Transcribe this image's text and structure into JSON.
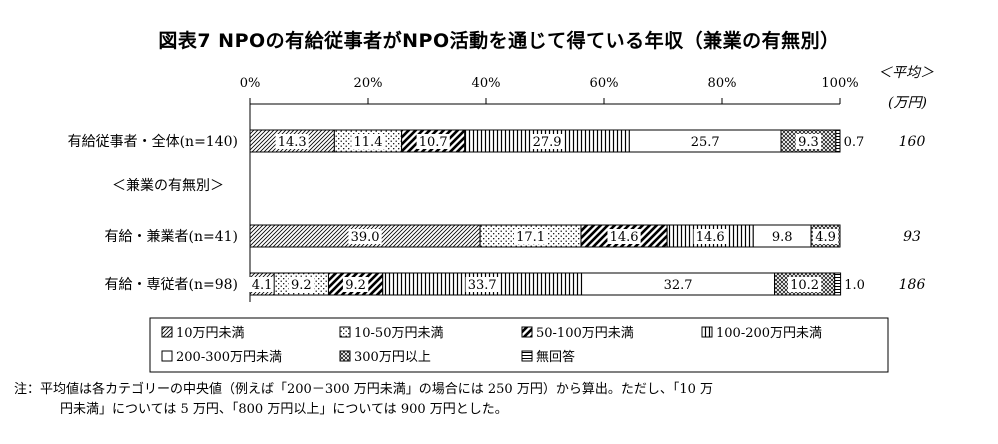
{
  "chart_data": {
    "type": "bar",
    "orientation": "horizontal",
    "stacked": true,
    "title": "図表7  NPOの有給従事者がNPO活動を通じて得ている年収（兼業の有無別）",
    "x_ticks": [
      "0%",
      "20%",
      "40%",
      "60%",
      "80%",
      "100%"
    ],
    "xlim": [
      0,
      100
    ],
    "average_header": [
      "＜平均＞",
      "(万円)"
    ],
    "section_label": "＜兼業の有無別＞",
    "categories": [
      "有給従事者・全体(n=140)",
      "有給・兼業者(n=41)",
      "有給・専従者(n=98)"
    ],
    "series": [
      {
        "name": "10万円未満",
        "values": [
          14.3,
          39.0,
          4.1
        ],
        "pattern": "diag-left"
      },
      {
        "name": "10-50万円未満",
        "values": [
          11.4,
          17.1,
          9.2
        ],
        "pattern": "dots"
      },
      {
        "name": "50-100万円未満",
        "values": [
          10.7,
          14.6,
          9.2
        ],
        "pattern": "diag-bold"
      },
      {
        "name": "100-200万円未満",
        "values": [
          27.9,
          14.6,
          33.7
        ],
        "pattern": "vertical"
      },
      {
        "name": "200-300万円未満",
        "values": [
          25.7,
          9.8,
          32.7
        ],
        "pattern": "white"
      },
      {
        "name": "300万円以上",
        "values": [
          9.3,
          4.9,
          10.2
        ],
        "pattern": "cross"
      },
      {
        "name": "無回答",
        "values": [
          0.7,
          0,
          1.0
        ],
        "pattern": "horizontal"
      }
    ],
    "value_labels": [
      [
        "14.3",
        "11.4",
        "10.7",
        "27.9",
        "25.7",
        "9.3",
        "0.7"
      ],
      [
        "39.0",
        "17.1",
        "14.6",
        "14.6",
        "9.8",
        "4.9",
        ""
      ],
      [
        "4.1",
        "9.2",
        "9.2",
        "33.7",
        "32.7",
        "10.2",
        "1.0"
      ]
    ],
    "averages": [
      "160",
      "93",
      "186"
    ],
    "legend": [
      "10万円未満",
      "10-50万円未満",
      "50-100万円未満",
      "100-200万円未満",
      "200-300万円未満",
      "300万円以上",
      "無回答"
    ]
  },
  "note": {
    "line1": "注：平均値は各カテゴリーの中央値（例えば「200－300 万円未満」の場合には 250 万円）から算出。ただし、「10 万",
    "line2": "円未満」については 5 万円、「800 万円以上」については 900 万円とした。"
  }
}
